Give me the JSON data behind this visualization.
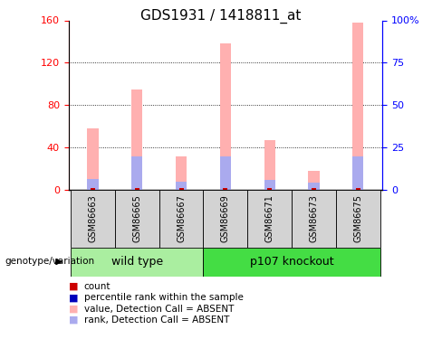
{
  "title": "GDS1931 / 1418811_at",
  "samples": [
    "GSM86663",
    "GSM86665",
    "GSM86667",
    "GSM86669",
    "GSM86671",
    "GSM86673",
    "GSM86675"
  ],
  "pink_values": [
    58,
    95,
    32,
    138,
    47,
    18,
    158
  ],
  "blue_values": [
    10,
    32,
    8,
    32,
    9,
    7,
    32
  ],
  "red_values": [
    2,
    2,
    2,
    2,
    2,
    2,
    2
  ],
  "ylim_left": [
    0,
    160
  ],
  "ylim_right": [
    0,
    100
  ],
  "yticks_left": [
    0,
    40,
    80,
    120,
    160
  ],
  "yticks_right": [
    0,
    25,
    50,
    75,
    100
  ],
  "ytick_labels_left": [
    "0",
    "40",
    "80",
    "120",
    "160"
  ],
  "ytick_labels_right": [
    "0",
    "25",
    "50",
    "75",
    "100%"
  ],
  "pink_color": "#FFB0B0",
  "blue_color": "#AAAAEE",
  "red_color": "#CC0000",
  "dark_blue_color": "#0000BB",
  "group_info": [
    {
      "label": "wild type",
      "start": 0,
      "end": 3,
      "color": "#AAEEA0"
    },
    {
      "label": "p107 knockout",
      "start": 3,
      "end": 7,
      "color": "#44DD44"
    }
  ],
  "legend_items": [
    {
      "color": "#CC0000",
      "label": "count"
    },
    {
      "color": "#0000BB",
      "label": "percentile rank within the sample"
    },
    {
      "color": "#FFB0B0",
      "label": "value, Detection Call = ABSENT"
    },
    {
      "color": "#AAAAEE",
      "label": "rank, Detection Call = ABSENT"
    }
  ]
}
